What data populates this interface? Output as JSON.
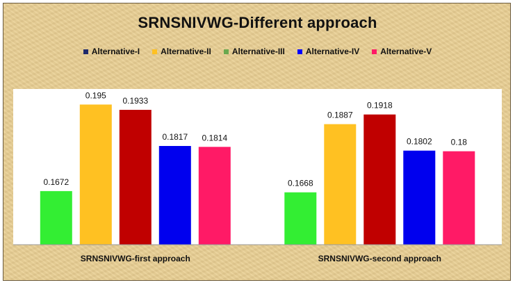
{
  "chart_data": {
    "type": "bar",
    "title": "SRNSNIVWG-Different approach",
    "categories": [
      "SRNSNIVWG-first approach",
      "SRNSNIVWG-second approach"
    ],
    "legend_position": "top",
    "grid": false,
    "ylim": [
      0.15,
      0.2
    ],
    "legend": [
      {
        "name": "Alternative-I",
        "color": "#1f2a6b"
      },
      {
        "name": "Alternative-II",
        "color": "#ffc122"
      },
      {
        "name": "Alternative-III",
        "color": "#6aa84f"
      },
      {
        "name": "Alternative-IV",
        "color": "#0000ff"
      },
      {
        "name": "Alternative-V",
        "color": "#ff1a66"
      }
    ],
    "bars": [
      {
        "value": 0.1672,
        "label": "0.1672",
        "color": "#33ee33"
      },
      {
        "value": 0.195,
        "label": "0.195",
        "color": "#ffc122"
      },
      {
        "value": 0.1933,
        "label": "0.1933",
        "color": "#c00000"
      },
      {
        "value": 0.1817,
        "label": "0.1817",
        "color": "#0000ee"
      },
      {
        "value": 0.1814,
        "label": "0.1814",
        "color": "#ff1a66"
      },
      {
        "value": 0.1668,
        "label": "0.1668",
        "color": "#33ee33"
      },
      {
        "value": 0.1887,
        "label": "0.1887",
        "color": "#ffc122"
      },
      {
        "value": 0.1918,
        "label": "0.1918",
        "color": "#c00000"
      },
      {
        "value": 0.1802,
        "label": "0.1802",
        "color": "#0000ee"
      },
      {
        "value": 0.18,
        "label": "0.18",
        "color": "#ff1a66"
      }
    ]
  }
}
